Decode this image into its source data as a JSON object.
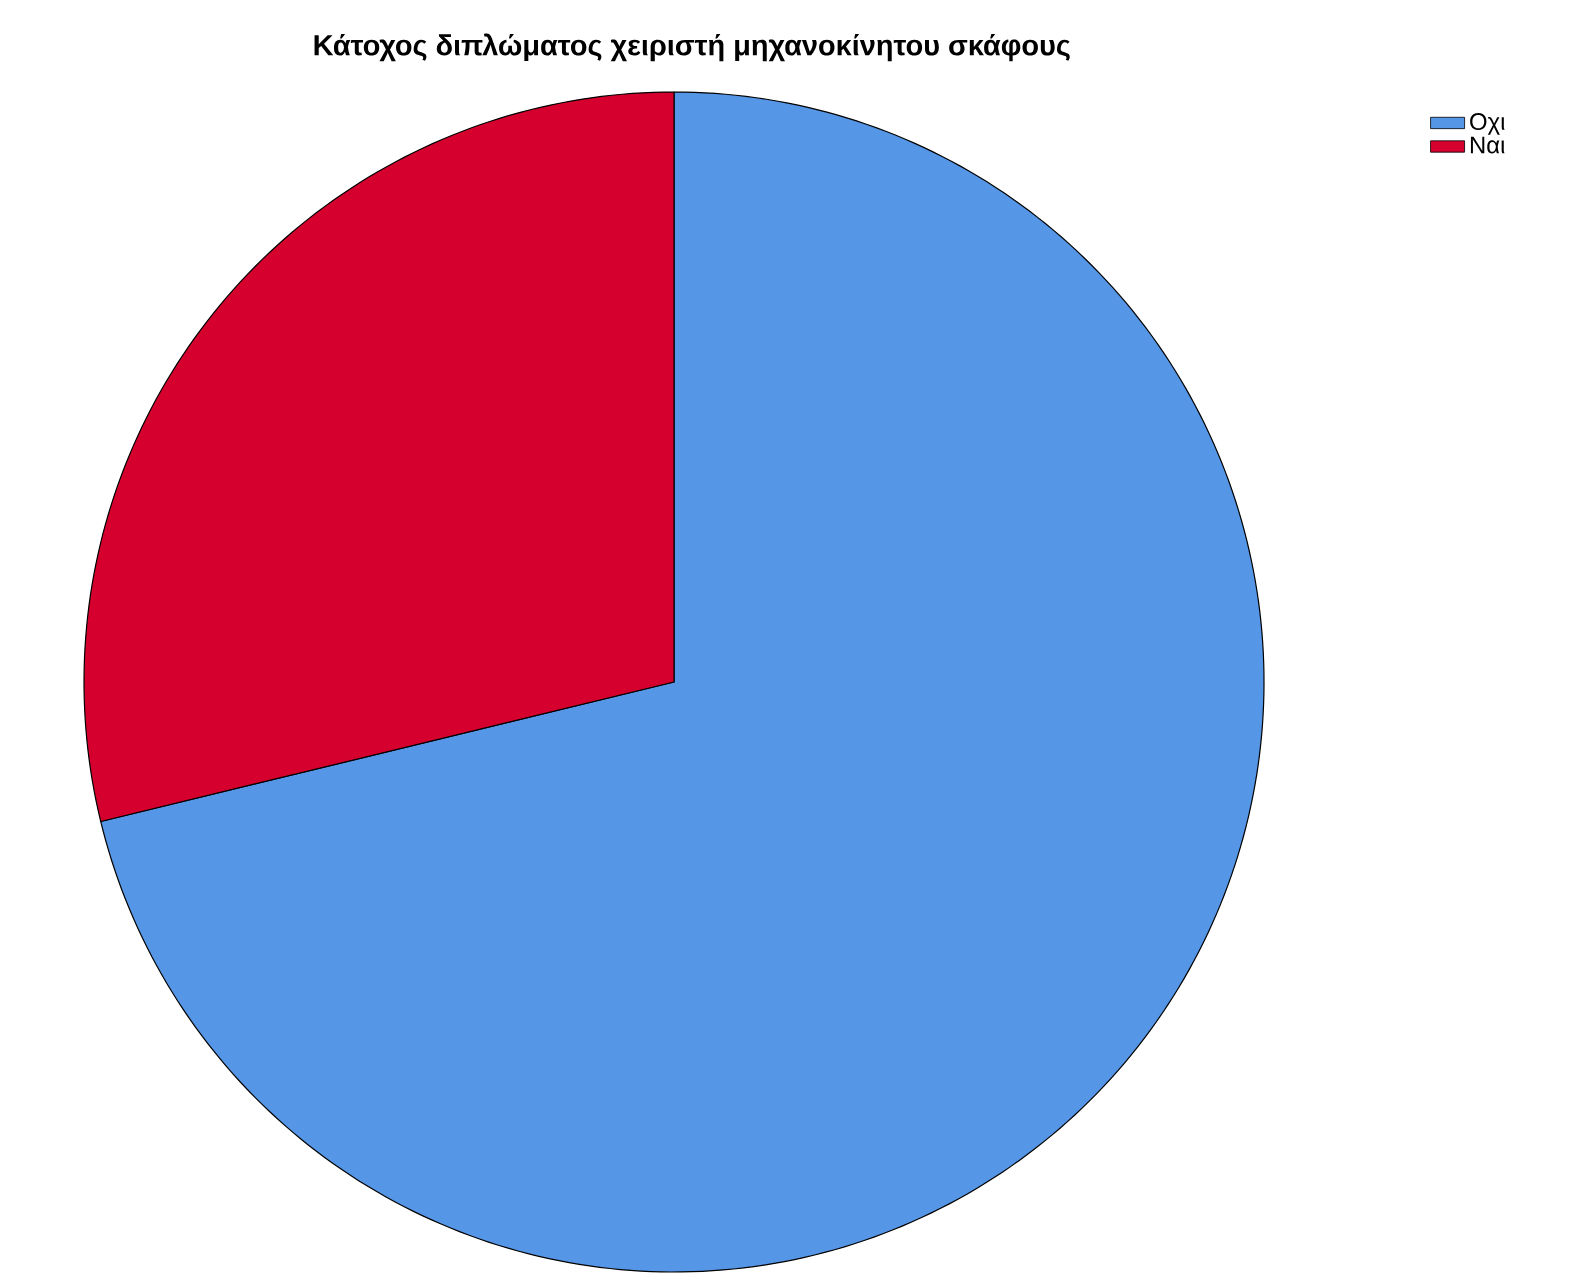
{
  "chart_data": {
    "type": "pie",
    "title": "Κάτοχος διπλώματος χειριστή μηχανοκίνητου σκάφους",
    "categories": [
      "Οχι",
      "Ναι"
    ],
    "values": [
      71.2,
      28.8
    ],
    "colors": [
      "#5596e6",
      "#d6002e"
    ],
    "legend": "top right"
  }
}
